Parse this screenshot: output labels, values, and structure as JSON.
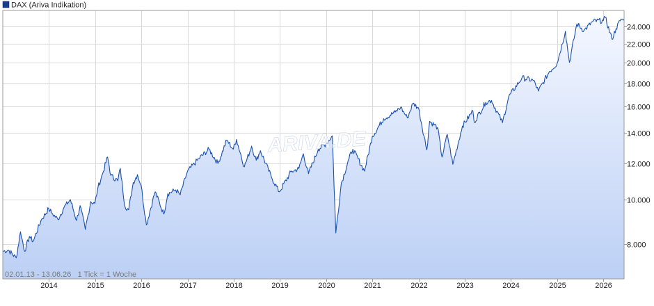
{
  "legend": {
    "label": "DAX (Ariva Indikation)",
    "swatch_color": "#1a3c8c"
  },
  "watermark": "ARIVA.DE",
  "footer_note": "02.01.13 - 13.06.26   1 Tick = 1 Woche",
  "colors": {
    "line": "#1a50b0",
    "fill_top": "#f4f7ff",
    "fill_bottom": "#bcd0f5",
    "grid": "#d9d9d9",
    "border": "#9a9a9a",
    "text": "#222222"
  },
  "chart_data": {
    "type": "area",
    "title": "",
    "xlabel": "",
    "ylabel": "",
    "y_scale": "log",
    "ylim": [
      6700,
      26000
    ],
    "xlim": [
      "2013-01-02",
      "2026-06-13"
    ],
    "grid": true,
    "legend_position": "top-left",
    "y_ticks": [
      8000,
      10000,
      12000,
      14000,
      16000,
      18000,
      20000,
      22000,
      24000
    ],
    "y_tick_labels": [
      "8.000",
      "10.000",
      "12.000",
      "14.000",
      "16.000",
      "18.000",
      "20.000",
      "22.000",
      "24.000"
    ],
    "x_ticks": [
      "2014",
      "2015",
      "2016",
      "2017",
      "2018",
      "2019",
      "2020",
      "2021",
      "2022",
      "2023",
      "2024",
      "2025",
      "2026"
    ],
    "series": [
      {
        "name": "DAX (Ariva Indikation)",
        "points": [
          [
            "2013-01-02",
            7700
          ],
          [
            "2013-02-15",
            7750
          ],
          [
            "2013-04-18",
            7450
          ],
          [
            "2013-05-22",
            8500
          ],
          [
            "2013-06-24",
            7700
          ],
          [
            "2013-07-31",
            8300
          ],
          [
            "2013-08-30",
            8100
          ],
          [
            "2013-10-31",
            9000
          ],
          [
            "2013-12-31",
            9550
          ],
          [
            "2014-01-31",
            9300
          ],
          [
            "2014-03-14",
            9050
          ],
          [
            "2014-04-30",
            9600
          ],
          [
            "2014-06-20",
            10000
          ],
          [
            "2014-08-08",
            9000
          ],
          [
            "2014-09-05",
            9700
          ],
          [
            "2014-10-16",
            8600
          ],
          [
            "2014-11-28",
            9900
          ],
          [
            "2014-12-31",
            9800
          ],
          [
            "2015-01-23",
            10600
          ],
          [
            "2015-03-02",
            11400
          ],
          [
            "2015-04-10",
            12400
          ],
          [
            "2015-05-06",
            11300
          ],
          [
            "2015-06-30",
            11000
          ],
          [
            "2015-07-20",
            11700
          ],
          [
            "2015-08-24",
            9700
          ],
          [
            "2015-09-24",
            9500
          ],
          [
            "2015-10-30",
            10900
          ],
          [
            "2015-12-02",
            11350
          ],
          [
            "2015-12-31",
            10750
          ],
          [
            "2016-02-11",
            8800
          ],
          [
            "2016-03-31",
            9950
          ],
          [
            "2016-04-20",
            10400
          ],
          [
            "2016-06-27",
            9300
          ],
          [
            "2016-07-29",
            10300
          ],
          [
            "2016-09-30",
            10500
          ],
          [
            "2016-11-04",
            10250
          ],
          [
            "2016-12-30",
            11500
          ],
          [
            "2017-03-31",
            12300
          ],
          [
            "2017-06-20",
            12900
          ],
          [
            "2017-08-29",
            12000
          ],
          [
            "2017-11-07",
            13500
          ],
          [
            "2017-12-29",
            12900
          ],
          [
            "2018-01-23",
            13550
          ],
          [
            "2018-03-26",
            11800
          ],
          [
            "2018-05-22",
            13100
          ],
          [
            "2018-06-28",
            12200
          ],
          [
            "2018-07-31",
            12800
          ],
          [
            "2018-10-26",
            11200
          ],
          [
            "2018-12-27",
            10400
          ],
          [
            "2019-03-29",
            11500
          ],
          [
            "2019-05-31",
            11700
          ],
          [
            "2019-07-05",
            12600
          ],
          [
            "2019-08-15",
            11400
          ],
          [
            "2019-10-31",
            12900
          ],
          [
            "2019-12-31",
            13250
          ],
          [
            "2020-02-19",
            13800
          ],
          [
            "2020-03-18",
            8450
          ],
          [
            "2020-04-30",
            10850
          ],
          [
            "2020-06-30",
            12300
          ],
          [
            "2020-07-31",
            12900
          ],
          [
            "2020-10-30",
            11550
          ],
          [
            "2020-12-31",
            13750
          ],
          [
            "2021-03-31",
            15050
          ],
          [
            "2021-06-30",
            15550
          ],
          [
            "2021-08-13",
            15950
          ],
          [
            "2021-10-04",
            15100
          ],
          [
            "2021-11-17",
            16250
          ],
          [
            "2021-12-31",
            15900
          ],
          [
            "2022-03-07",
            12850
          ],
          [
            "2022-03-29",
            14850
          ],
          [
            "2022-05-31",
            14400
          ],
          [
            "2022-07-05",
            12400
          ],
          [
            "2022-08-16",
            13900
          ],
          [
            "2022-09-29",
            11950
          ],
          [
            "2022-12-13",
            14500
          ],
          [
            "2023-03-06",
            15650
          ],
          [
            "2023-03-16",
            14800
          ],
          [
            "2023-06-16",
            16350
          ],
          [
            "2023-07-31",
            16500
          ],
          [
            "2023-10-26",
            14750
          ],
          [
            "2023-12-14",
            16800
          ],
          [
            "2024-03-28",
            18500
          ],
          [
            "2024-06-28",
            18250
          ],
          [
            "2024-08-05",
            17300
          ],
          [
            "2024-10-31",
            19100
          ],
          [
            "2024-12-31",
            19900
          ],
          [
            "2025-03-06",
            23400
          ],
          [
            "2025-04-07",
            20000
          ],
          [
            "2025-06-05",
            24300
          ],
          [
            "2025-08-01",
            23500
          ],
          [
            "2025-10-09",
            24600
          ],
          [
            "2025-12-31",
            24700
          ],
          [
            "2026-01-15",
            25100
          ],
          [
            "2026-03-09",
            22500
          ],
          [
            "2026-04-10",
            23700
          ],
          [
            "2026-05-20",
            24900
          ],
          [
            "2026-06-13",
            24700
          ]
        ]
      }
    ]
  }
}
